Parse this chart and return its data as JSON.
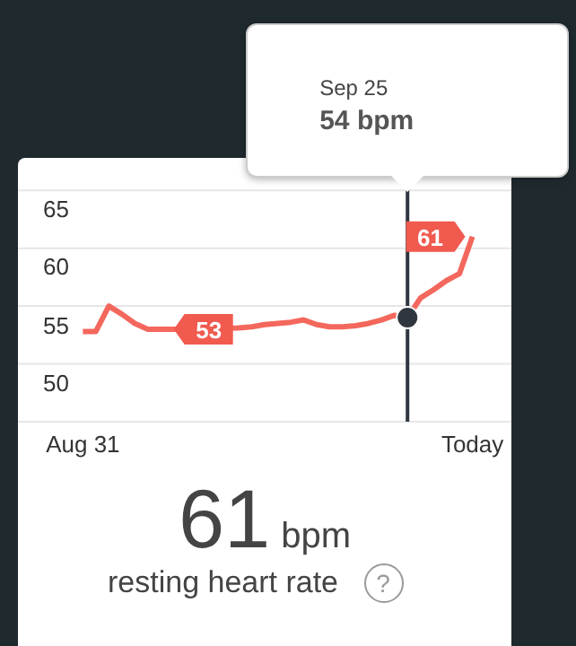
{
  "chart_data": {
    "type": "line",
    "categories": [
      "Aug 31",
      null,
      null,
      null,
      null,
      null,
      null,
      null,
      null,
      null,
      null,
      null,
      null,
      null,
      null,
      null,
      null,
      null,
      null,
      null,
      null,
      null,
      null,
      null,
      null,
      null,
      null,
      null,
      null,
      null,
      "Today"
    ],
    "series": [
      {
        "color": "#f4675c",
        "values": [
          52.8,
          52.8,
          55,
          54.3,
          53.5,
          53,
          53,
          53,
          null,
          null,
          null,
          null,
          53.1,
          53.2,
          53.4,
          53.5,
          53.6,
          53.8,
          53.4,
          53.2,
          53.2,
          53.3,
          53.5,
          53.8,
          54.2,
          54,
          55.7,
          56.4,
          57.2,
          57.8,
          61
        ],
        "value_labels": [
          null,
          null,
          null,
          null,
          null,
          null,
          null,
          "53",
          null,
          null,
          null,
          null,
          null,
          null,
          null,
          null,
          null,
          null,
          null,
          null,
          null,
          null,
          null,
          null,
          null,
          null,
          null,
          null,
          null,
          null,
          "61"
        ]
      }
    ],
    "ylim": [
      45,
      67.5
    ],
    "yticks": [
      {
        "value": 45,
        "label": null
      },
      50,
      55,
      60,
      65
    ],
    "grid": "y",
    "annotations": [
      "Sep 25",
      "54 bpm",
      "61",
      "bpm",
      "resting heart rate",
      "?"
    ]
  }
}
